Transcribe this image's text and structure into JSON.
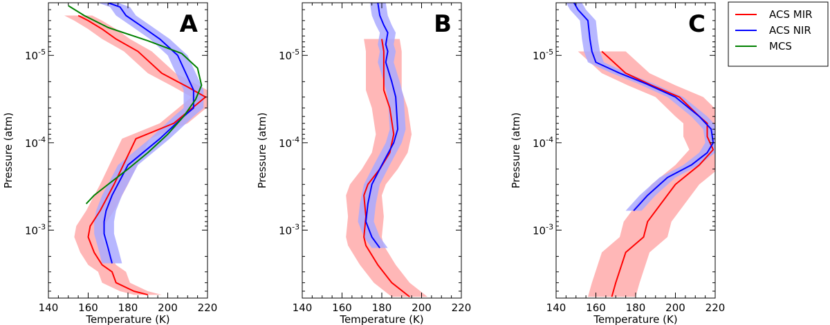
{
  "chart_data": [
    {
      "type": "line",
      "panel_label": "A",
      "xlabel": "Temperature (K)",
      "ylabel": "Pressure (atm)",
      "xlim": [
        140,
        220
      ],
      "ylim": [
        2.5e-06,
        0.006
      ],
      "y_scale": "log",
      "x_ticks": [
        "140",
        "160",
        "180",
        "200",
        "220"
      ],
      "y_ticks": [
        {
          "mantissa": "10",
          "exponent": "-5",
          "value": 1e-05
        },
        {
          "mantissa": "10",
          "exponent": "-4",
          "value": 0.0001
        },
        {
          "mantissa": "10",
          "exponent": "-3",
          "value": 0.001
        }
      ],
      "series": [
        {
          "name": "ACS MIR",
          "color": "#ff0000",
          "temperature": [
            190,
            183,
            174,
            172,
            167,
            163,
            160,
            161,
            166,
            173,
            184,
            203,
            219,
            210,
            197,
            185,
            174,
            167,
            160,
            155
          ],
          "pressure": [
            0.0055,
            0.005,
            0.004,
            0.003,
            0.0025,
            0.0018,
            0.0012,
            0.0009,
            0.0006,
            0.0003,
            9e-05,
            6e-05,
            3e-05,
            2.3e-05,
            1.6e-05,
            9e-06,
            6.5e-06,
            5e-06,
            4e-06,
            3.5e-06
          ],
          "band_halfwidth": 7
        },
        {
          "name": "ACS NIR",
          "color": "#0000ff",
          "temperature": [
            172,
            170,
            168,
            168,
            169,
            172,
            180,
            196,
            208,
            213,
            213,
            205,
            196,
            186,
            179,
            176,
            170
          ],
          "pressure": [
            0.0024,
            0.0016,
            0.0011,
            0.0008,
            0.0006,
            0.0004,
            0.00018,
            9e-05,
            5e-05,
            4e-05,
            2.5e-05,
            1e-05,
            6.5e-06,
            4.5e-06,
            3.5e-06,
            2.8e-06,
            2.5e-06
          ],
          "band_halfwidth": 5
        },
        {
          "name": "MCS",
          "color": "#008000",
          "temperature": [
            159,
            163,
            170,
            180,
            190,
            200,
            208,
            214,
            217,
            215,
            207,
            190,
            170,
            158,
            150
          ],
          "pressure": [
            0.0005,
            0.0004,
            0.0003,
            0.0002,
            0.00013,
            8e-05,
            5e-05,
            3.2e-05,
            2.2e-05,
            1.4e-05,
            9.5e-06,
            6.8e-06,
            4.8e-06,
            3.5e-06,
            2.7e-06
          ],
          "band_halfwidth": 0
        }
      ]
    },
    {
      "type": "line",
      "panel_label": "B",
      "xlabel": "Temperature (K)",
      "ylabel": "Pressure (atm)",
      "xlim": [
        140,
        220
      ],
      "ylim": [
        2.5e-06,
        0.006
      ],
      "y_scale": "log",
      "x_ticks": [
        "140",
        "160",
        "180",
        "200",
        "220"
      ],
      "y_ticks": [
        {
          "mantissa": "10",
          "exponent": "-5",
          "value": 1e-05
        },
        {
          "mantissa": "10",
          "exponent": "-4",
          "value": 0.0001
        },
        {
          "mantissa": "10",
          "exponent": "-3",
          "value": 0.001
        }
      ],
      "series": [
        {
          "name": "ACS MIR",
          "color": "#ff0000",
          "temperature": [
            194,
            185,
            178,
            172,
            171,
            172,
            171,
            173,
            179,
            184,
            186,
            184,
            181,
            181,
            181,
            181,
            180
          ],
          "pressure": [
            0.0058,
            0.004,
            0.0025,
            0.0015,
            0.0012,
            0.0007,
            0.0004,
            0.0003,
            0.0002,
            0.00013,
            8e-05,
            4e-05,
            2.5e-05,
            1.8e-05,
            1.3e-05,
            9e-06,
            6.5e-06
          ],
          "band_halfwidth": 9
        },
        {
          "name": "ACS NIR",
          "color": "#0000ff",
          "temperature": [
            179,
            175,
            172,
            173,
            175,
            180,
            186,
            188,
            187,
            185,
            182,
            183,
            182,
            183,
            181,
            179,
            178
          ],
          "pressure": [
            0.0016,
            0.0012,
            0.0008,
            0.0005,
            0.0003,
            0.00018,
            0.0001,
            7e-05,
            3e-05,
            2e-05,
            1.2e-05,
            9e-06,
            7.5e-06,
            5.5e-06,
            4.5e-06,
            3.5e-06,
            2.5e-06
          ],
          "band_halfwidth": 4
        }
      ]
    },
    {
      "type": "line",
      "panel_label": "C",
      "xlabel": "Temperature (K)",
      "ylabel": "Pressure (atm)",
      "xlim": [
        140,
        220
      ],
      "ylim": [
        2.5e-06,
        0.006
      ],
      "y_scale": "log",
      "x_ticks": [
        "140",
        "160",
        "180",
        "200",
        "220"
      ],
      "y_ticks": [
        {
          "mantissa": "10",
          "exponent": "-5",
          "value": 1e-05
        },
        {
          "mantissa": "10",
          "exponent": "-4",
          "value": 0.0001
        },
        {
          "mantissa": "10",
          "exponent": "-3",
          "value": 0.001
        }
      ],
      "series": [
        {
          "name": "ACS MIR",
          "color": "#ff0000",
          "temperature": [
            168,
            170,
            175,
            184,
            186,
            200,
            212,
            219,
            216,
            216,
            212,
            202,
            188,
            175,
            163
          ],
          "pressure": [
            0.0058,
            0.004,
            0.0018,
            0.0012,
            0.0008,
            0.0003,
            0.00018,
            0.00012,
            8.5e-05,
            6e-05,
            5e-05,
            3e-05,
            2.2e-05,
            1.6e-05,
            9e-06
          ],
          "band_halfwidth": 12
        },
        {
          "name": "ACS NIR",
          "color": "#0000ff",
          "temperature": [
            179,
            186,
            196,
            208,
            216,
            219,
            218,
            212,
            200,
            185,
            172,
            160,
            158,
            157,
            156,
            151,
            149
          ],
          "pressure": [
            0.0006,
            0.0004,
            0.00025,
            0.00018,
            0.00013,
            0.0001,
            7e-05,
            5e-05,
            3e-05,
            2.1e-05,
            1.6e-05,
            1.2e-05,
            9e-06,
            6.5e-06,
            4e-06,
            3e-06,
            2.5e-06
          ],
          "band_halfwidth": 4
        }
      ]
    }
  ],
  "legend": {
    "items": [
      {
        "label": "ACS MIR",
        "color": "#ff0000"
      },
      {
        "label": "ACS NIR",
        "color": "#0000ff"
      },
      {
        "label": "MCS",
        "color": "#008000"
      }
    ]
  }
}
